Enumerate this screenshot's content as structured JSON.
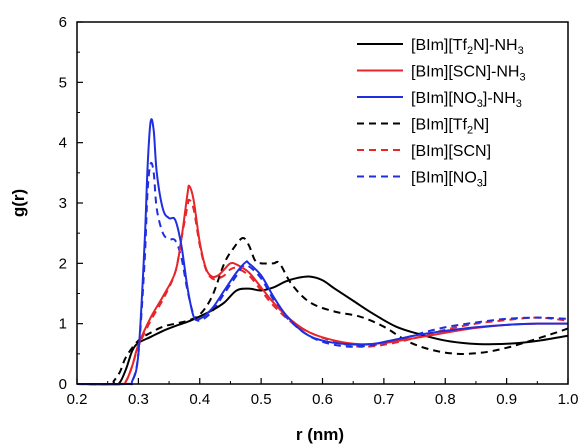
{
  "chart_data": {
    "type": "line",
    "xlabel": "r (nm)",
    "ylabel": "g(r)",
    "xlim": [
      0.2,
      1.0
    ],
    "ylim": [
      0,
      6
    ],
    "xticks": [
      "0.2",
      "0.3",
      "0.4",
      "0.5",
      "0.6",
      "0.7",
      "0.8",
      "0.9",
      "1.0"
    ],
    "yticks": [
      "0",
      "1",
      "2",
      "3",
      "4",
      "5",
      "6"
    ],
    "grid": false,
    "legend_position": "top-right",
    "series": [
      {
        "name": "[BIm][Tf2N]-NH3",
        "legend_parts": [
          [
            "[BIm][Tf",
            ""
          ],
          [
            "2",
            "sub"
          ],
          [
            "N]-NH",
            ""
          ],
          [
            "3",
            "sub"
          ]
        ],
        "color": "#000000",
        "dash": "solid",
        "points": [
          [
            0.2,
            0
          ],
          [
            0.26,
            0
          ],
          [
            0.27,
            0.03
          ],
          [
            0.28,
            0.25
          ],
          [
            0.29,
            0.55
          ],
          [
            0.3,
            0.68
          ],
          [
            0.32,
            0.78
          ],
          [
            0.34,
            0.88
          ],
          [
            0.36,
            0.96
          ],
          [
            0.38,
            1.03
          ],
          [
            0.4,
            1.12
          ],
          [
            0.42,
            1.22
          ],
          [
            0.44,
            1.35
          ],
          [
            0.46,
            1.55
          ],
          [
            0.48,
            1.58
          ],
          [
            0.5,
            1.55
          ],
          [
            0.52,
            1.6
          ],
          [
            0.54,
            1.7
          ],
          [
            0.56,
            1.76
          ],
          [
            0.58,
            1.78
          ],
          [
            0.6,
            1.72
          ],
          [
            0.62,
            1.58
          ],
          [
            0.65,
            1.38
          ],
          [
            0.68,
            1.18
          ],
          [
            0.72,
            0.95
          ],
          [
            0.76,
            0.82
          ],
          [
            0.8,
            0.72
          ],
          [
            0.84,
            0.67
          ],
          [
            0.88,
            0.66
          ],
          [
            0.92,
            0.68
          ],
          [
            0.96,
            0.73
          ],
          [
            1.0,
            0.8
          ]
        ]
      },
      {
        "name": "[BIm][SCN]-NH3",
        "legend_parts": [
          [
            "[BIm][SCN]-NH",
            ""
          ],
          [
            "3",
            "sub"
          ]
        ],
        "color": "#e8262a",
        "dash": "solid",
        "points": [
          [
            0.2,
            0
          ],
          [
            0.27,
            0
          ],
          [
            0.28,
            0.05
          ],
          [
            0.29,
            0.3
          ],
          [
            0.3,
            0.65
          ],
          [
            0.32,
            1.1
          ],
          [
            0.34,
            1.45
          ],
          [
            0.36,
            1.85
          ],
          [
            0.37,
            2.4
          ],
          [
            0.38,
            3.15
          ],
          [
            0.383,
            3.28
          ],
          [
            0.39,
            3.05
          ],
          [
            0.4,
            2.35
          ],
          [
            0.41,
            1.92
          ],
          [
            0.42,
            1.78
          ],
          [
            0.43,
            1.8
          ],
          [
            0.44,
            1.9
          ],
          [
            0.45,
            2.0
          ],
          [
            0.46,
            1.98
          ],
          [
            0.48,
            1.85
          ],
          [
            0.5,
            1.6
          ],
          [
            0.52,
            1.35
          ],
          [
            0.55,
            1.05
          ],
          [
            0.58,
            0.85
          ],
          [
            0.62,
            0.72
          ],
          [
            0.66,
            0.66
          ],
          [
            0.7,
            0.68
          ],
          [
            0.75,
            0.76
          ],
          [
            0.8,
            0.85
          ],
          [
            0.85,
            0.93
          ],
          [
            0.9,
            0.98
          ],
          [
            0.95,
            1.0
          ],
          [
            1.0,
            1.0
          ]
        ]
      },
      {
        "name": "[BIm][NO3]-NH3",
        "legend_parts": [
          [
            "[BIm][NO",
            ""
          ],
          [
            "3",
            "sub"
          ],
          [
            "]-NH",
            ""
          ],
          [
            "3",
            "sub"
          ]
        ],
        "color": "#1f2fe0",
        "dash": "solid",
        "points": [
          [
            0.2,
            0
          ],
          [
            0.28,
            0
          ],
          [
            0.29,
            0.05
          ],
          [
            0.3,
            0.5
          ],
          [
            0.31,
            2.3
          ],
          [
            0.315,
            3.6
          ],
          [
            0.32,
            4.35
          ],
          [
            0.325,
            4.2
          ],
          [
            0.33,
            3.5
          ],
          [
            0.34,
            2.9
          ],
          [
            0.35,
            2.75
          ],
          [
            0.36,
            2.72
          ],
          [
            0.37,
            2.3
          ],
          [
            0.38,
            1.6
          ],
          [
            0.39,
            1.12
          ],
          [
            0.4,
            1.08
          ],
          [
            0.42,
            1.25
          ],
          [
            0.44,
            1.55
          ],
          [
            0.46,
            1.85
          ],
          [
            0.475,
            2.02
          ],
          [
            0.48,
            2.0
          ],
          [
            0.5,
            1.8
          ],
          [
            0.52,
            1.45
          ],
          [
            0.54,
            1.15
          ],
          [
            0.57,
            0.85
          ],
          [
            0.6,
            0.72
          ],
          [
            0.64,
            0.66
          ],
          [
            0.68,
            0.66
          ],
          [
            0.72,
            0.74
          ],
          [
            0.76,
            0.82
          ],
          [
            0.8,
            0.88
          ],
          [
            0.85,
            0.94
          ],
          [
            0.9,
            0.98
          ],
          [
            0.95,
            1.0
          ],
          [
            1.0,
            1.0
          ]
        ]
      },
      {
        "name": "[BIm][Tf2N]",
        "legend_parts": [
          [
            "[BIm][Tf",
            ""
          ],
          [
            "2",
            "sub"
          ],
          [
            "N]",
            ""
          ]
        ],
        "color": "#000000",
        "dash": "dashed",
        "points": [
          [
            0.2,
            0
          ],
          [
            0.255,
            0
          ],
          [
            0.26,
            0.05
          ],
          [
            0.27,
            0.2
          ],
          [
            0.28,
            0.45
          ],
          [
            0.3,
            0.72
          ],
          [
            0.32,
            0.85
          ],
          [
            0.34,
            0.95
          ],
          [
            0.36,
            1.0
          ],
          [
            0.38,
            1.05
          ],
          [
            0.4,
            1.15
          ],
          [
            0.42,
            1.45
          ],
          [
            0.44,
            2.0
          ],
          [
            0.455,
            2.25
          ],
          [
            0.47,
            2.42
          ],
          [
            0.48,
            2.3
          ],
          [
            0.49,
            2.05
          ],
          [
            0.5,
            2.0
          ],
          [
            0.52,
            2.0
          ],
          [
            0.53,
            2.0
          ],
          [
            0.55,
            1.65
          ],
          [
            0.58,
            1.35
          ],
          [
            0.62,
            1.2
          ],
          [
            0.66,
            1.12
          ],
          [
            0.7,
            0.95
          ],
          [
            0.74,
            0.7
          ],
          [
            0.78,
            0.56
          ],
          [
            0.82,
            0.5
          ],
          [
            0.86,
            0.52
          ],
          [
            0.9,
            0.6
          ],
          [
            0.94,
            0.72
          ],
          [
            0.98,
            0.85
          ],
          [
            1.0,
            0.92
          ]
        ]
      },
      {
        "name": "[BIm][SCN]",
        "legend_parts": [
          [
            "[BIm][SCN]",
            ""
          ]
        ],
        "color": "#e8262a",
        "dash": "dashed",
        "points": [
          [
            0.2,
            0
          ],
          [
            0.27,
            0
          ],
          [
            0.28,
            0.05
          ],
          [
            0.29,
            0.3
          ],
          [
            0.3,
            0.62
          ],
          [
            0.32,
            1.05
          ],
          [
            0.34,
            1.4
          ],
          [
            0.36,
            1.85
          ],
          [
            0.37,
            2.4
          ],
          [
            0.38,
            2.95
          ],
          [
            0.383,
            3.05
          ],
          [
            0.39,
            2.9
          ],
          [
            0.4,
            2.3
          ],
          [
            0.41,
            1.9
          ],
          [
            0.42,
            1.75
          ],
          [
            0.43,
            1.75
          ],
          [
            0.44,
            1.8
          ],
          [
            0.45,
            1.9
          ],
          [
            0.46,
            1.92
          ],
          [
            0.48,
            1.8
          ],
          [
            0.5,
            1.55
          ],
          [
            0.52,
            1.3
          ],
          [
            0.55,
            1.02
          ],
          [
            0.58,
            0.85
          ],
          [
            0.62,
            0.7
          ],
          [
            0.66,
            0.62
          ],
          [
            0.7,
            0.65
          ],
          [
            0.75,
            0.76
          ],
          [
            0.8,
            0.9
          ],
          [
            0.85,
            1.0
          ],
          [
            0.9,
            1.06
          ],
          [
            0.95,
            1.1
          ],
          [
            1.0,
            1.05
          ]
        ]
      },
      {
        "name": "[BIm][NO3]",
        "legend_parts": [
          [
            "[BIm][NO",
            ""
          ],
          [
            "3",
            "sub"
          ],
          [
            "]",
            ""
          ]
        ],
        "color": "#1f2fe0",
        "dash": "dashed",
        "points": [
          [
            0.2,
            0
          ],
          [
            0.28,
            0
          ],
          [
            0.29,
            0.05
          ],
          [
            0.3,
            0.5
          ],
          [
            0.31,
            2.0
          ],
          [
            0.315,
            3.2
          ],
          [
            0.32,
            3.65
          ],
          [
            0.325,
            3.5
          ],
          [
            0.33,
            2.9
          ],
          [
            0.34,
            2.5
          ],
          [
            0.35,
            2.4
          ],
          [
            0.36,
            2.38
          ],
          [
            0.37,
            2.1
          ],
          [
            0.38,
            1.55
          ],
          [
            0.39,
            1.15
          ],
          [
            0.4,
            1.05
          ],
          [
            0.42,
            1.2
          ],
          [
            0.44,
            1.5
          ],
          [
            0.46,
            1.8
          ],
          [
            0.47,
            1.95
          ],
          [
            0.48,
            1.95
          ],
          [
            0.5,
            1.75
          ],
          [
            0.52,
            1.4
          ],
          [
            0.54,
            1.12
          ],
          [
            0.57,
            0.85
          ],
          [
            0.6,
            0.7
          ],
          [
            0.64,
            0.62
          ],
          [
            0.68,
            0.64
          ],
          [
            0.72,
            0.72
          ],
          [
            0.76,
            0.84
          ],
          [
            0.8,
            0.94
          ],
          [
            0.85,
            1.02
          ],
          [
            0.9,
            1.08
          ],
          [
            0.95,
            1.1
          ],
          [
            1.0,
            1.08
          ]
        ]
      }
    ]
  }
}
